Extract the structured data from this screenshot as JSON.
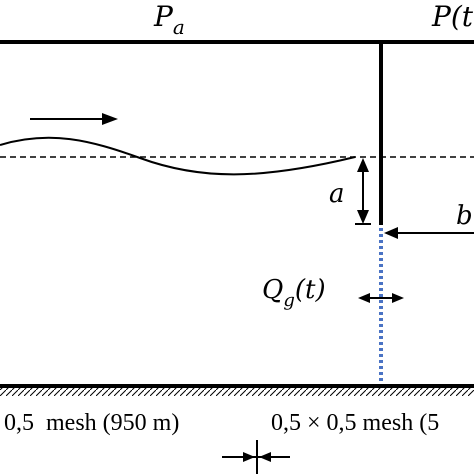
{
  "labels": {
    "ambient_pressure": {
      "main": "P",
      "sub": "a"
    },
    "chamber_pressure": "P(t",
    "wave_amplitude": "a",
    "chamber_width": "b",
    "gap_flow": {
      "main": "Q",
      "sub": "g",
      "arg": "(t)"
    },
    "mesh_left": "0,5  mesh (950 m)",
    "mesh_right": "0,5 × 0,5 mesh (5"
  },
  "colors": {
    "lines": "#000000",
    "porous_wall": "#4a73c4",
    "background": "#ffffff"
  }
}
